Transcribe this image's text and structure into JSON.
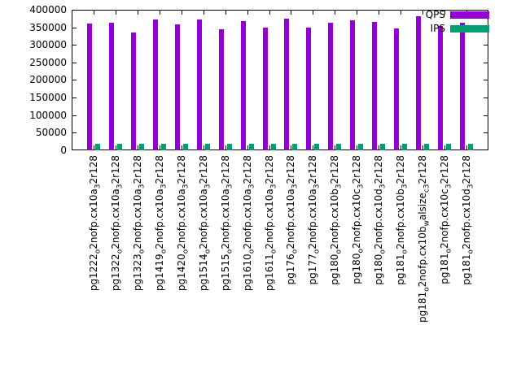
{
  "chart_data": {
    "type": "bar",
    "title": "",
    "xlabel": "",
    "ylabel": "",
    "grid": false,
    "legend_position": "top-right",
    "x_label_rotation": 90,
    "ylim": [
      0,
      400000
    ],
    "y_ticks": [
      0,
      50000,
      100000,
      150000,
      200000,
      250000,
      300000,
      350000,
      400000
    ],
    "y_tick_labels": [
      "0",
      "50000",
      "100000",
      "150000",
      "200000",
      "250000",
      "300000",
      "350000",
      "400000"
    ],
    "categories": [
      "pg1222_o2nofp.cx10a_32r128",
      "pg1322_o2nofp.cx10a_32r128",
      "pg1323_o2nofp.cx10a_32r128",
      "pg1419_o2nofp.cx10a_32r128",
      "pg1420_o2nofp.cx10a_32r128",
      "pg1514_o2nofp.cx10a_32r128",
      "pg1515_o2nofp.cx10a_32r128",
      "pg1610_o2nofp.cx10a_32r128",
      "pg1611_o2nofp.cx10a_32r128",
      "pg176_o2nofp.cx10a_32r128",
      "pg177_o2nofp.cx10a_32r128",
      "pg180_o2nofp.cx10b_32r128",
      "pg180_o2nofp.cx10c_32r128",
      "pg180_o2nofp.cx10d_32r128",
      "pg181_o2nofp.cx10b_32r128",
      "pg181_o2nofp.cx10b_walsize_c_32r128",
      "pg181_o2nofp.cx10c_32r128",
      "pg181_o2nofp.cx10d_32r128"
    ],
    "series": [
      {
        "name": "QPS",
        "color": "#9400d3",
        "values": [
          361000,
          363000,
          335000,
          372000,
          358000,
          372000,
          344000,
          368000,
          349000,
          375000,
          349000,
          363000,
          370000,
          365000,
          347000,
          381000,
          354000,
          363000
        ]
      },
      {
        "name": "IPS",
        "color": "#009e73",
        "values": [
          18500,
          18700,
          17900,
          18600,
          18400,
          18600,
          18200,
          18500,
          18300,
          18700,
          18200,
          18400,
          18600,
          18500,
          18100,
          18800,
          18400,
          18500
        ]
      }
    ]
  }
}
